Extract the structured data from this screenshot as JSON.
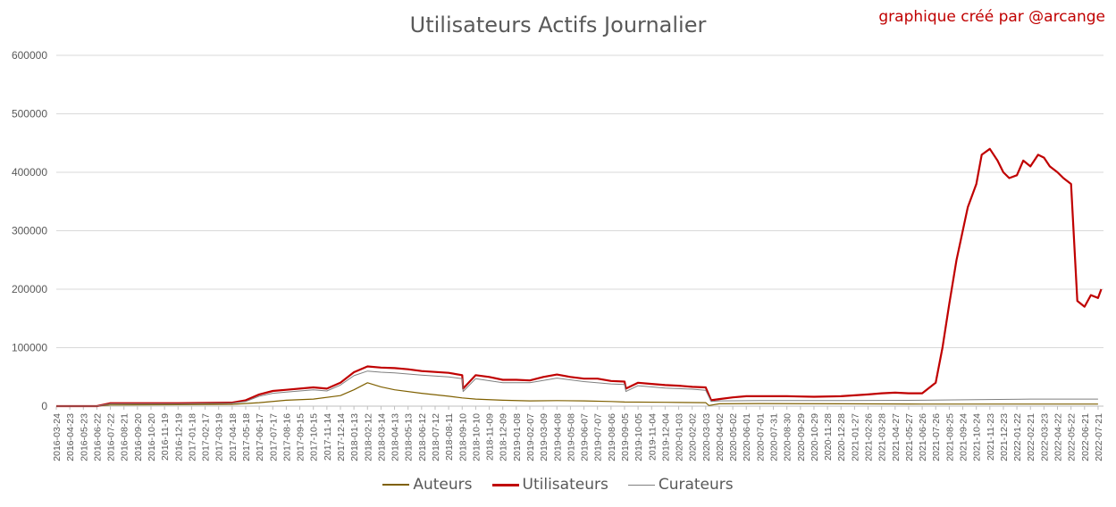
{
  "chart_data": {
    "type": "line",
    "title": "Utilisateurs Actifs Journalier",
    "credit": "graphique créé par @arcange",
    "xlabel": "",
    "ylabel": "",
    "ylim": [
      0,
      600000
    ],
    "yticks": [
      "0",
      "100000",
      "200000",
      "300000",
      "400000",
      "500000",
      "600000"
    ],
    "grid": true,
    "legend_position": "bottom",
    "xticks": [
      "2016-03-24",
      "2016-04-23",
      "2016-05-23",
      "2016-06-22",
      "2016-07-22",
      "2016-08-21",
      "2016-09-20",
      "2016-10-20",
      "2016-11-19",
      "2016-12-19",
      "2017-01-18",
      "2017-02-17",
      "2017-03-19",
      "2017-04-18",
      "2017-05-18",
      "2017-06-17",
      "2017-07-17",
      "2017-08-16",
      "2017-09-15",
      "2017-10-15",
      "2017-11-14",
      "2017-12-14",
      "2018-01-13",
      "2018-02-12",
      "2018-03-14",
      "2018-04-13",
      "2018-05-13",
      "2018-06-12",
      "2018-07-12",
      "2018-08-11",
      "2018-09-10",
      "2018-10-10",
      "2018-11-09",
      "2018-12-09",
      "2019-01-08",
      "2019-02-07",
      "2019-03-09",
      "2019-04-08",
      "2019-05-08",
      "2019-06-07",
      "2019-07-07",
      "2019-08-06",
      "2019-09-05",
      "2019-10-05",
      "2019-11-04",
      "2019-12-04",
      "2020-01-03",
      "2020-02-02",
      "2020-03-03",
      "2020-04-02",
      "2020-05-02",
      "2020-06-01",
      "2020-07-01",
      "2020-07-31",
      "2020-08-30",
      "2020-09-29",
      "2020-10-29",
      "2020-11-28",
      "2020-12-28",
      "2021-01-27",
      "2021-02-26",
      "2021-03-28",
      "2021-04-27",
      "2021-05-27",
      "2021-06-26",
      "2021-07-26",
      "2021-08-25",
      "2021-09-24",
      "2021-10-24",
      "2021-11-23",
      "2021-12-23",
      "2022-01-22",
      "2022-02-21",
      "2022-03-23",
      "2022-04-22",
      "2022-05-22",
      "2022-06-21",
      "2022-07-21"
    ],
    "series": [
      {
        "name": "Auteurs",
        "color": "#7f6000",
        "x": [
          "2016-03-24",
          "2016-06-22",
          "2016-07-22",
          "2016-12-19",
          "2017-04-18",
          "2017-06-17",
          "2017-08-16",
          "2017-10-15",
          "2017-12-14",
          "2018-01-13",
          "2018-02-12",
          "2018-03-14",
          "2018-04-13",
          "2018-06-12",
          "2018-08-11",
          "2018-09-10",
          "2018-10-10",
          "2018-12-09",
          "2019-02-07",
          "2019-04-08",
          "2019-06-07",
          "2019-08-06",
          "2019-09-05",
          "2019-12-04",
          "2020-03-03",
          "2020-03-10",
          "2020-04-02",
          "2020-07-01",
          "2020-12-28",
          "2021-06-26",
          "2021-10-24",
          "2022-02-21",
          "2022-07-21"
        ],
        "values": [
          0,
          0,
          2000,
          2500,
          3000,
          6000,
          10000,
          12000,
          18000,
          28000,
          40000,
          33000,
          28000,
          22000,
          17000,
          14000,
          12000,
          10000,
          9000,
          9500,
          9000,
          8000,
          7000,
          6500,
          6000,
          1000,
          4000,
          4500,
          4000,
          3500,
          3500,
          3500,
          3500
        ]
      },
      {
        "name": "Utilisateurs",
        "color": "#c00000",
        "x": [
          "2016-03-24",
          "2016-06-22",
          "2016-07-22",
          "2016-12-19",
          "2017-04-18",
          "2017-05-18",
          "2017-06-17",
          "2017-07-17",
          "2017-08-16",
          "2017-10-15",
          "2017-11-14",
          "2017-12-14",
          "2018-01-13",
          "2018-02-12",
          "2018-03-14",
          "2018-04-13",
          "2018-05-13",
          "2018-06-12",
          "2018-08-11",
          "2018-09-10",
          "2018-09-12",
          "2018-10-10",
          "2018-11-09",
          "2018-12-09",
          "2019-01-08",
          "2019-02-07",
          "2019-03-09",
          "2019-04-08",
          "2019-05-08",
          "2019-06-07",
          "2019-07-07",
          "2019-08-06",
          "2019-09-05",
          "2019-09-08",
          "2019-10-05",
          "2019-11-04",
          "2019-12-04",
          "2020-01-03",
          "2020-02-02",
          "2020-03-03",
          "2020-03-15",
          "2020-04-02",
          "2020-05-02",
          "2020-06-01",
          "2020-07-01",
          "2020-08-30",
          "2020-10-29",
          "2020-12-28",
          "2021-02-26",
          "2021-03-28",
          "2021-04-27",
          "2021-05-27",
          "2021-06-26",
          "2021-07-26",
          "2021-08-10",
          "2021-08-25",
          "2021-09-10",
          "2021-09-24",
          "2021-10-05",
          "2021-10-24",
          "2021-11-05",
          "2021-11-23",
          "2021-12-10",
          "2021-12-23",
          "2022-01-05",
          "2022-01-22",
          "2022-02-05",
          "2022-02-21",
          "2022-03-10",
          "2022-03-23",
          "2022-04-05",
          "2022-04-22",
          "2022-05-05",
          "2022-05-22",
          "2022-06-05",
          "2022-06-21",
          "2022-07-05",
          "2022-07-21",
          "2022-07-28"
        ],
        "values": [
          0,
          0,
          5000,
          5000,
          6000,
          10000,
          20000,
          26000,
          28000,
          32000,
          30000,
          40000,
          58000,
          68000,
          66000,
          65000,
          63000,
          60000,
          57000,
          53000,
          30000,
          53000,
          50000,
          45000,
          45000,
          44000,
          50000,
          54000,
          50000,
          47000,
          47000,
          43000,
          42000,
          30000,
          40000,
          38000,
          36000,
          35000,
          33000,
          32000,
          10000,
          12000,
          15000,
          17000,
          17000,
          17000,
          16000,
          17000,
          20000,
          22000,
          23000,
          22000,
          22000,
          40000,
          100000,
          175000,
          250000,
          300000,
          340000,
          380000,
          430000,
          440000,
          420000,
          400000,
          390000,
          395000,
          420000,
          410000,
          430000,
          425000,
          410000,
          400000,
          390000,
          380000,
          180000,
          170000,
          190000,
          185000,
          200000
        ]
      },
      {
        "name": "Curateurs",
        "color": "#7f7f7f",
        "x": [
          "2016-03-24",
          "2016-06-22",
          "2016-07-22",
          "2016-12-19",
          "2017-04-18",
          "2017-05-18",
          "2017-06-17",
          "2017-07-17",
          "2017-08-16",
          "2017-10-15",
          "2017-11-14",
          "2017-12-14",
          "2018-01-13",
          "2018-02-12",
          "2018-03-14",
          "2018-04-13",
          "2018-06-12",
          "2018-08-11",
          "2018-09-10",
          "2018-09-12",
          "2018-10-10",
          "2018-12-09",
          "2019-02-07",
          "2019-04-08",
          "2019-06-07",
          "2019-08-06",
          "2019-09-05",
          "2019-09-08",
          "2019-10-05",
          "2019-12-04",
          "2020-02-02",
          "2020-03-03",
          "2020-03-15",
          "2020-04-02",
          "2020-07-01",
          "2020-12-28",
          "2021-06-26",
          "2021-10-24",
          "2022-02-21",
          "2022-07-21"
        ],
        "values": [
          0,
          0,
          4000,
          4000,
          5000,
          8000,
          17000,
          22000,
          24000,
          28000,
          26000,
          36000,
          52000,
          60000,
          58000,
          57000,
          53000,
          50000,
          47000,
          25000,
          47000,
          40000,
          40000,
          48000,
          42000,
          38000,
          37000,
          25000,
          35000,
          31000,
          29000,
          27000,
          8000,
          9000,
          9500,
          9500,
          10000,
          11000,
          12000,
          12000
        ]
      }
    ]
  }
}
